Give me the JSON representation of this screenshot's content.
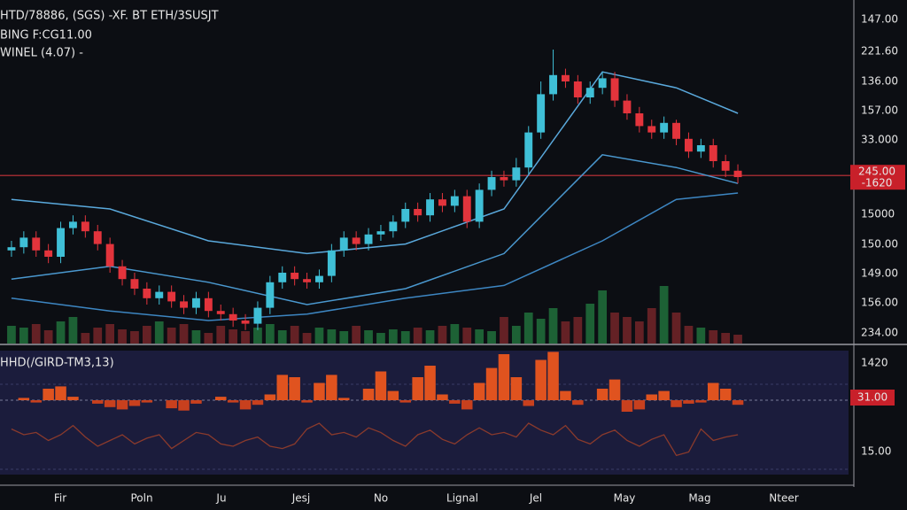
{
  "chart_data": {
    "type": "candlestick",
    "title_lines": [
      "HTD/78886, (SGS) -XF. BT ETH/3SUSJT",
      "BING F:CG11.00",
      "WINEL (4.07) -"
    ],
    "x_labels": [
      "Fir",
      "Poln",
      "Ju",
      "Jesj",
      "No",
      "Lignal",
      "Jel",
      "May",
      "Mag",
      "Nteer"
    ],
    "price_axis_labels": [
      "147.00",
      "221.60",
      "136.00",
      "157.00",
      "33.000",
      "15000",
      "150.00",
      "149.00",
      "156.00",
      "234.00"
    ],
    "last_price_labels": [
      "245.00",
      "-1620"
    ],
    "indicator_title": "HHD(/GIRD-TM3,13)",
    "indicator_axis_labels": [
      "1420",
      "15.00"
    ],
    "indicator_last_label": "31.00",
    "ylim": [
      0,
      100
    ],
    "up_color": "#3fbfd6",
    "down_color": "#e3343c",
    "price_line": 50.5,
    "open": [
      27,
      28,
      31,
      27,
      25,
      34,
      36,
      33,
      29,
      22,
      18,
      15,
      12,
      14,
      11,
      9,
      12,
      8,
      7,
      5,
      4,
      9,
      17,
      20,
      18,
      17,
      19,
      27,
      31,
      29,
      32,
      33,
      36,
      40,
      38,
      43,
      41,
      44,
      36,
      46,
      50,
      49,
      53,
      64,
      76,
      82,
      80,
      75,
      78,
      81,
      74,
      70,
      66,
      64,
      67,
      62,
      58,
      60,
      55,
      52
    ],
    "high": [
      30,
      33,
      33,
      29,
      36,
      38,
      38,
      35,
      31,
      24,
      20,
      17,
      16,
      16,
      13,
      14,
      14,
      10,
      9,
      7,
      11,
      19,
      22,
      22,
      20,
      21,
      29,
      33,
      33,
      34,
      35,
      38,
      42,
      42,
      45,
      45,
      46,
      46,
      48,
      52,
      52,
      56,
      66,
      80,
      90,
      84,
      82,
      80,
      83,
      83,
      76,
      72,
      68,
      69,
      68,
      64,
      62,
      62,
      57,
      54
    ],
    "low": [
      25,
      26,
      25,
      23,
      23,
      32,
      31,
      27,
      20,
      16,
      13,
      10,
      10,
      9,
      7,
      7,
      6,
      5,
      3,
      2,
      2,
      7,
      15,
      16,
      15,
      15,
      17,
      25,
      27,
      27,
      30,
      31,
      34,
      36,
      36,
      39,
      39,
      34,
      34,
      44,
      47,
      47,
      51,
      62,
      74,
      78,
      73,
      73,
      76,
      72,
      68,
      64,
      62,
      62,
      60,
      56,
      56,
      53,
      50,
      48
    ],
    "close": [
      28,
      31,
      27,
      25,
      34,
      36,
      33,
      29,
      22,
      18,
      15,
      12,
      14,
      11,
      9,
      12,
      8,
      7,
      5,
      4,
      9,
      17,
      20,
      18,
      17,
      19,
      27,
      31,
      29,
      32,
      33,
      36,
      40,
      38,
      43,
      41,
      44,
      36,
      46,
      50,
      49,
      53,
      64,
      76,
      82,
      80,
      75,
      78,
      81,
      74,
      70,
      66,
      64,
      67,
      62,
      58,
      60,
      55,
      52,
      50
    ],
    "ma_x": [
      0,
      8,
      16,
      24,
      32,
      40,
      48,
      54,
      59
    ],
    "ma_series": [
      {
        "color": "#5aa9dc",
        "values": [
          43,
          40,
          30,
          26,
          29,
          40,
          83,
          78,
          70
        ]
      },
      {
        "color": "#4a98cf",
        "values": [
          18,
          22,
          17,
          10,
          15,
          26,
          57,
          53,
          48
        ]
      },
      {
        "color": "#3d86c2",
        "values": [
          12,
          8,
          5,
          7,
          12,
          16,
          30,
          43,
          45
        ]
      }
    ],
    "volume_ylim": [
      0,
      80
    ],
    "volume": [
      20,
      18,
      22,
      15,
      25,
      30,
      12,
      18,
      22,
      16,
      14,
      20,
      25,
      18,
      22,
      15,
      12,
      20,
      16,
      14,
      18,
      22,
      15,
      20,
      12,
      18,
      16,
      14,
      20,
      15,
      12,
      16,
      14,
      18,
      15,
      20,
      22,
      18,
      16,
      14,
      30,
      20,
      35,
      28,
      40,
      25,
      30,
      45,
      60,
      35,
      30,
      25,
      40,
      65,
      35,
      20,
      18,
      15,
      12,
      10
    ],
    "indicator_ylim": [
      -60,
      40
    ],
    "histogram": [
      0,
      2,
      -2,
      10,
      12,
      3,
      0,
      -3,
      -6,
      -8,
      -5,
      -2,
      0,
      -7,
      -9,
      -3,
      0,
      3,
      -2,
      -8,
      -4,
      5,
      22,
      20,
      -2,
      15,
      22,
      2,
      0,
      10,
      25,
      8,
      -2,
      20,
      30,
      5,
      -3,
      -8,
      15,
      28,
      40,
      20,
      -5,
      35,
      42,
      8,
      -4,
      0,
      10,
      18,
      -10,
      -8,
      5,
      8,
      -6,
      -3,
      -2,
      15,
      10,
      -4
    ],
    "signal": [
      -25,
      -30,
      -28,
      -35,
      -30,
      -22,
      -32,
      -40,
      -35,
      -30,
      -38,
      -33,
      -30,
      -42,
      -35,
      -28,
      -30,
      -38,
      -40,
      -35,
      -32,
      -40,
      -42,
      -38,
      -25,
      -20,
      -30,
      -28,
      -32,
      -24,
      -28,
      -35,
      -40,
      -30,
      -26,
      -34,
      -38,
      -30,
      -24,
      -30,
      -28,
      -32,
      -20,
      -26,
      -30,
      -22,
      -34,
      -38,
      -30,
      -26,
      -35,
      -40,
      -34,
      -30,
      -48,
      -45,
      -25,
      -35,
      -32,
      -30
    ],
    "signal_color": "#8a3a2c"
  }
}
